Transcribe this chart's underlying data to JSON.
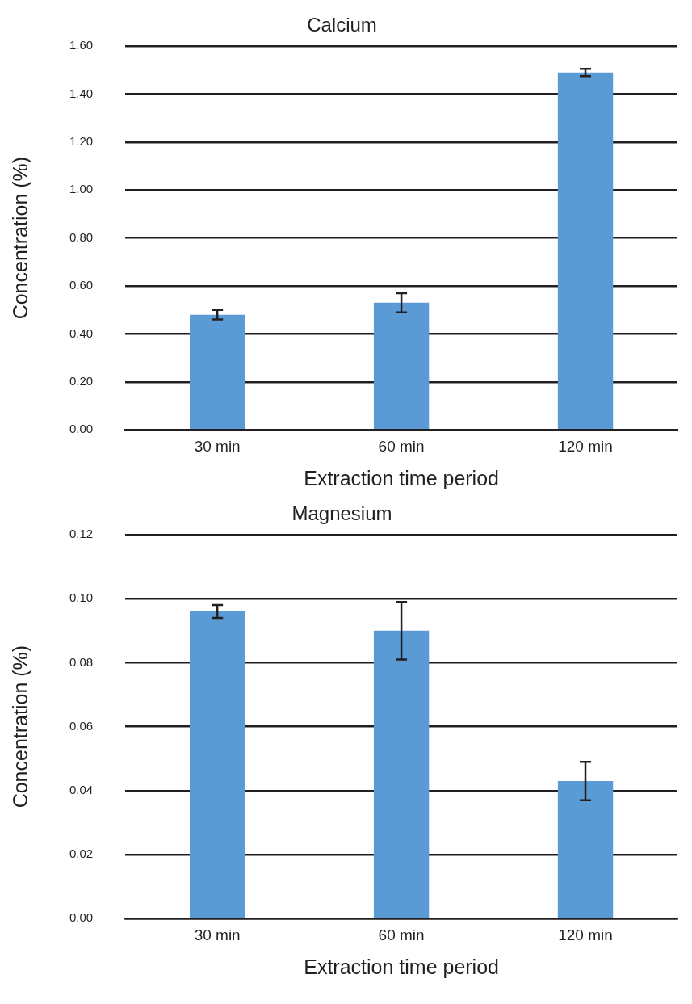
{
  "chart_data": [
    {
      "type": "bar",
      "title": "Calcium",
      "xlabel": "Extraction time period",
      "ylabel": "Concentration (%)",
      "categories": [
        "30 min",
        "60 min",
        "120 min"
      ],
      "values": [
        0.48,
        0.53,
        1.49
      ],
      "errors": [
        0.02,
        0.04,
        0.015
      ],
      "color": "#5b9bd5",
      "ylim": [
        0,
        1.6
      ],
      "yticks": [
        {
          "value": 0,
          "label": "0.00"
        },
        {
          "value": 0.2,
          "label": "0.20"
        },
        {
          "value": 0.4,
          "label": "0.40"
        },
        {
          "value": 0.6,
          "label": "0.60"
        },
        {
          "value": 0.8,
          "label": "0.80"
        },
        {
          "value": 1,
          "label": "1.00"
        },
        {
          "value": 1.2,
          "label": "1.20"
        },
        {
          "value": 1.4,
          "label": "1.40"
        },
        {
          "value": 1.6,
          "label": "1.60"
        }
      ],
      "grid": "y"
    },
    {
      "type": "bar",
      "title": "Magnesium",
      "xlabel": "Extraction time period",
      "ylabel": "Concentration (%)",
      "categories": [
        "30 min",
        "60 min",
        "120 min"
      ],
      "values": [
        0.096,
        0.09,
        0.043
      ],
      "errors": [
        0.002,
        0.009,
        0.006
      ],
      "color": "#5b9bd5",
      "ylim": [
        0,
        0.12
      ],
      "yticks": [
        {
          "value": 0,
          "label": "0.00"
        },
        {
          "value": 0.02,
          "label": "0.02"
        },
        {
          "value": 0.04,
          "label": "0.04"
        },
        {
          "value": 0.06,
          "label": "0.06"
        },
        {
          "value": 0.08,
          "label": "0.08"
        },
        {
          "value": 0.1,
          "label": "0.10"
        },
        {
          "value": 0.12,
          "label": "0.12"
        }
      ],
      "grid": "y"
    }
  ]
}
